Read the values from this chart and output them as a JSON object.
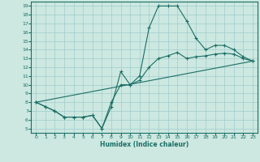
{
  "xlabel": "Humidex (Indice chaleur)",
  "xlim": [
    -0.5,
    23.5
  ],
  "ylim": [
    4.5,
    19.5
  ],
  "xticks": [
    0,
    1,
    2,
    3,
    4,
    5,
    6,
    7,
    8,
    9,
    10,
    11,
    12,
    13,
    14,
    15,
    16,
    17,
    18,
    19,
    20,
    21,
    22,
    23
  ],
  "yticks": [
    5,
    6,
    7,
    8,
    9,
    10,
    11,
    12,
    13,
    14,
    15,
    16,
    17,
    18,
    19
  ],
  "bg_color": "#cce8e0",
  "line_color": "#1a6e66",
  "grid_color": "#a0cccc",
  "line1_x": [
    0,
    1,
    2,
    3,
    4,
    5,
    6,
    7,
    8,
    9,
    10,
    11,
    12,
    13,
    14,
    15,
    16,
    17,
    18,
    19,
    20,
    21,
    22,
    23
  ],
  "line1_y": [
    8.0,
    7.5,
    7.0,
    6.3,
    6.3,
    6.3,
    6.5,
    5.0,
    7.5,
    11.5,
    10.0,
    11.0,
    16.5,
    19.0,
    19.0,
    19.0,
    17.3,
    15.3,
    14.0,
    14.5,
    14.5,
    14.0,
    13.2,
    12.7
  ],
  "line2_x": [
    0,
    1,
    2,
    3,
    4,
    5,
    6,
    7,
    8,
    9,
    10,
    11,
    12,
    13,
    14,
    15,
    16,
    17,
    18,
    19,
    20,
    21,
    22,
    23
  ],
  "line2_y": [
    8.0,
    7.5,
    7.0,
    6.3,
    6.3,
    6.3,
    6.5,
    5.0,
    8.0,
    10.0,
    10.0,
    10.5,
    12.0,
    13.0,
    13.3,
    13.7,
    13.0,
    13.2,
    13.3,
    13.5,
    13.6,
    13.5,
    13.0,
    12.7
  ],
  "line3_x": [
    0,
    23
  ],
  "line3_y": [
    8.0,
    12.7
  ]
}
